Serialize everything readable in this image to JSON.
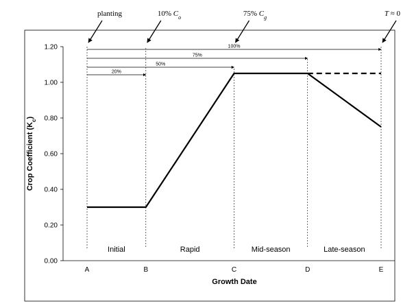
{
  "chart_data": {
    "type": "line",
    "title": "",
    "xlabel": "Growth Date",
    "ylabel_main": "Crop Coefficient (K",
    "ylabel_sub": "c",
    "ylabel_tail": ")",
    "ylim": [
      0,
      1.2
    ],
    "y_ticks": [
      "0.00",
      "0.20",
      "0.40",
      "0.60",
      "0.80",
      "1.00",
      "1.20"
    ],
    "y_tick_values": [
      0,
      0.2,
      0.4,
      0.6,
      0.8,
      1.0,
      1.2
    ],
    "stages": [
      "A",
      "B",
      "C",
      "D",
      "E"
    ],
    "stage_positions": [
      0,
      20,
      50,
      75,
      100
    ],
    "phases": [
      "Initial",
      "Rapid",
      "Mid-season",
      "Late-season"
    ],
    "series": [
      {
        "style": "solid",
        "x": [
          0,
          20,
          50,
          75,
          100
        ],
        "y": [
          0.3,
          0.3,
          1.05,
          1.05,
          0.75
        ]
      },
      {
        "style": "dashed",
        "x": [
          75,
          100
        ],
        "y": [
          1.05,
          1.05
        ]
      }
    ],
    "duration_arrows": [
      {
        "label": "20%",
        "value": 20
      },
      {
        "label": "50%",
        "value": 50
      },
      {
        "label": "75%",
        "value": 75
      },
      {
        "label": "100%",
        "value": 100
      }
    ],
    "annotations": [
      {
        "text": "planting",
        "stage": "A"
      },
      {
        "text": "10% ",
        "italic": "C",
        "sub": "o",
        "stage": "B"
      },
      {
        "text": "75% ",
        "italic": "C",
        "sub": "g",
        "stage": "C"
      },
      {
        "text": "",
        "italic": "T",
        "tail": " ≈ 0",
        "stage": "E"
      }
    ]
  }
}
